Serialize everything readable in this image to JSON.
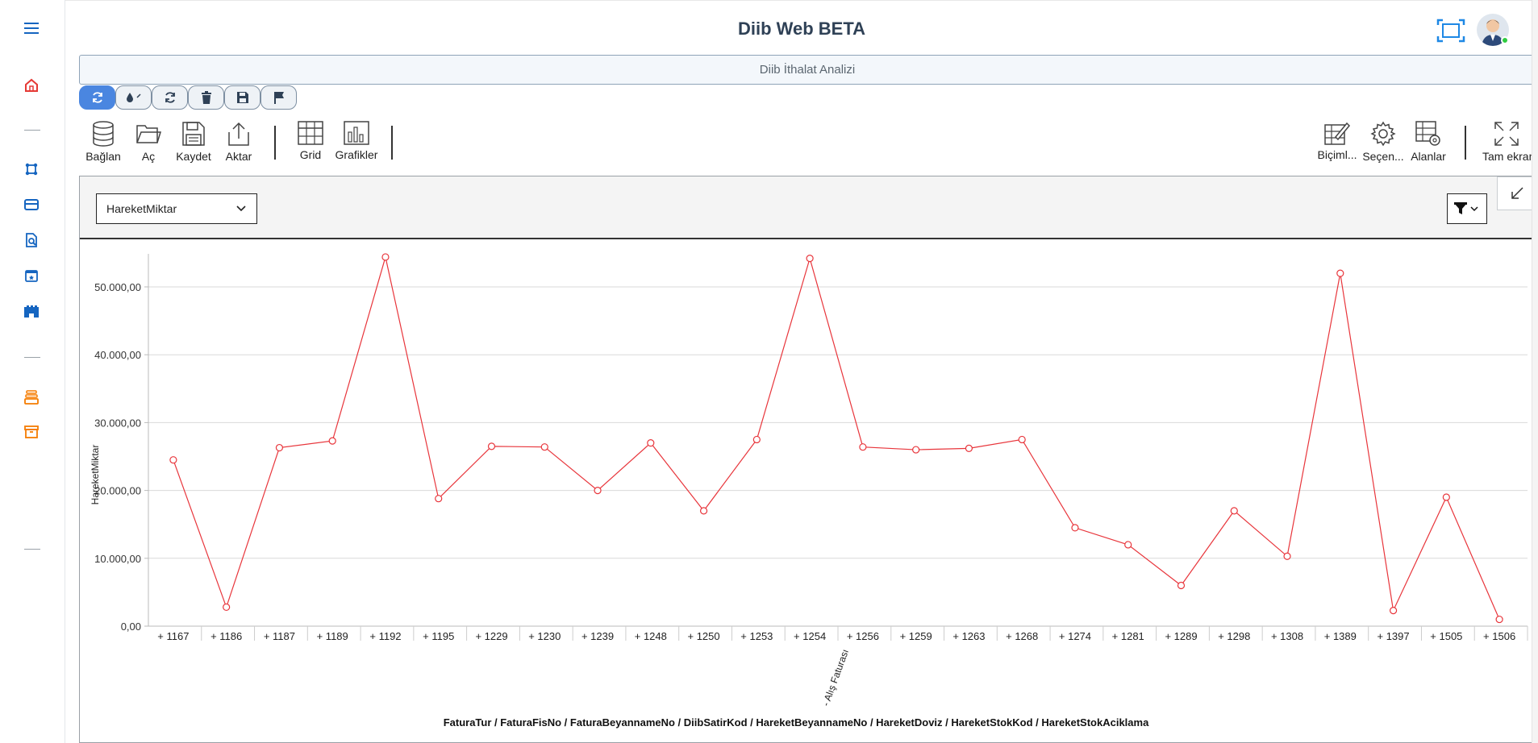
{
  "app": {
    "title": "Diib Web BETA"
  },
  "report": {
    "title": "Diib İthalat Analizi"
  },
  "toolbar": {
    "items": [
      {
        "label": "Bağlan",
        "icon": "database-icon"
      },
      {
        "label": "Aç",
        "icon": "folder-open-icon"
      },
      {
        "label": "Kaydet",
        "icon": "save-file-icon"
      },
      {
        "label": "Aktar",
        "icon": "export-icon"
      },
      {
        "label": "Grid",
        "icon": "grid-icon"
      },
      {
        "label": "Grafikler",
        "icon": "bar-chart-icon"
      }
    ],
    "right_items": [
      {
        "label": "Biçiml...",
        "icon": "format-icon"
      },
      {
        "label": "Seçen...",
        "icon": "options-gear-icon"
      },
      {
        "label": "Alanlar",
        "icon": "fields-icon"
      },
      {
        "label": "Tam ekran",
        "icon": "fullscreen-icon"
      }
    ]
  },
  "chart_panel": {
    "measure_selected": "HareketMiktar"
  },
  "colors": {
    "accent": "#4a86e0",
    "series": "#e8353b",
    "sidebar_blue": "#1565c0",
    "sidebar_orange": "#f57c00",
    "sidebar_red": "#e53935"
  },
  "chart_data": {
    "type": "line",
    "ylabel": "HareketMiktar",
    "xlabel": "FaturaTur / FaturaFisNo / FaturaBeyannameNo / DiibSatirKod / HareketBeyannameNo / HareketDoviz / HareketStokKod / HareketStokAciklama",
    "group_label": "- Alış Faturası",
    "ylim": [
      0,
      55000
    ],
    "yticks": [
      "0,00",
      "10.000,00",
      "20.000,00",
      "30.000,00",
      "40.000,00",
      "50.000,00"
    ],
    "grid": true,
    "categories": [
      "+ 1167",
      "+ 1186",
      "+ 1187",
      "+ 1189",
      "+ 1192",
      "+ 1195",
      "+ 1229",
      "+ 1230",
      "+ 1239",
      "+ 1248",
      "+ 1250",
      "+ 1253",
      "+ 1254",
      "+ 1256",
      "+ 1259",
      "+ 1263",
      "+ 1268",
      "+ 1274",
      "+ 1281",
      "+ 1289",
      "+ 1298",
      "+ 1308",
      "+ 1389",
      "+ 1397",
      "+ 1505",
      "+ 1506"
    ],
    "series": [
      {
        "values": [
          24500,
          2800,
          26300,
          27300,
          54400,
          18800,
          26500,
          26400,
          20000,
          27000,
          17000,
          27500,
          54200,
          26400,
          26000,
          26200,
          27500,
          14500,
          12000,
          6000,
          17000,
          10300,
          52000,
          2300,
          19000,
          1000
        ]
      }
    ]
  }
}
